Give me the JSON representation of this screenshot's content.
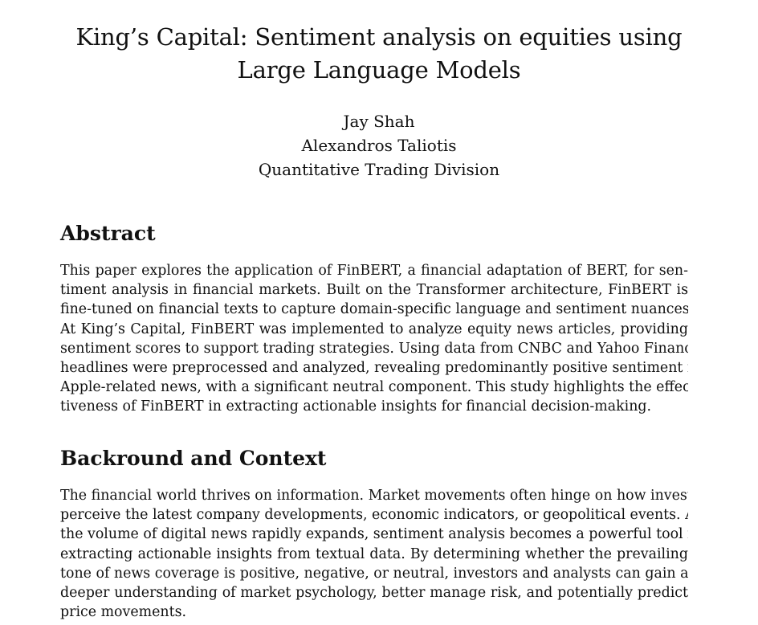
{
  "paper": {
    "title_lines": [
      "King’s Capital: Sentiment analysis on equities using",
      "Large Language Models"
    ],
    "authors": [
      "Jay Shah",
      "Alexandros Taliotis",
      "Quantitative Trading Division"
    ],
    "sections": [
      {
        "heading": "Abstract",
        "lines": [
          "This paper explores the application of FinBERT, a financial adaptation of BERT, for sen-",
          "timent analysis in financial markets. Built on the Transformer architecture, FinBERT is",
          "fine-tuned on financial texts to capture domain-specific language and sentiment nuances.",
          "At King’s Capital, FinBERT was implemented to analyze equity news articles, providing",
          "sentiment scores to support trading strategies. Using data from CNBC and Yahoo Finance,",
          "headlines were preprocessed and analyzed, revealing predominantly positive sentiment for",
          "Apple-related news, with a significant neutral component. This study highlights the effec-",
          "tiveness of FinBERT in extracting actionable insights for financial decision-making."
        ]
      },
      {
        "heading": "Backround and Context",
        "lines": [
          "The financial world thrives on information. Market movements often hinge on how investors",
          "perceive the latest company developments, economic indicators, or geopolitical events. As",
          "the volume of digital news rapidly expands, sentiment analysis becomes a powerful tool for",
          "extracting actionable insights from textual data. By determining whether the prevailing",
          "tone of news coverage is positive, negative, or neutral, investors and analysts can gain a",
          "deeper understanding of market psychology, better manage risk, and potentially predict",
          "price movements."
        ]
      }
    ]
  }
}
